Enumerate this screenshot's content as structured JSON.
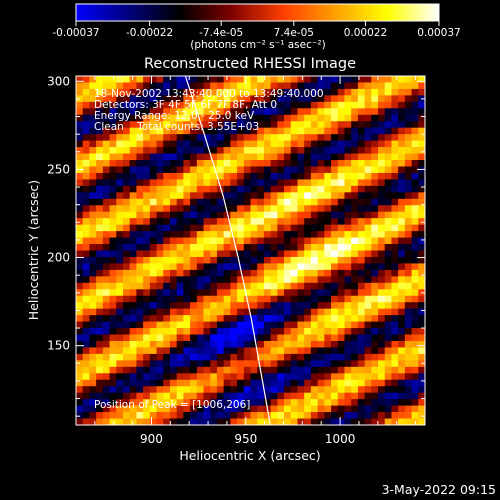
{
  "colorbar": {
    "tick_labels": [
      "-0.00037",
      "-0.00022",
      "-7.4e-05",
      "7.4e-05",
      "0.00022",
      "0.00037"
    ],
    "tick_values": [
      -0.00037,
      -0.00022,
      -7.4e-05,
      7.4e-05,
      0.00022,
      0.00037
    ],
    "range": [
      -0.00037,
      0.00037
    ],
    "unit_label": "(photons cm⁻² s⁻¹ asec⁻²)"
  },
  "chart_data": {
    "type": "heatmap",
    "title": "Reconstructed RHESSI Image",
    "xlabel": "Heliocentric X (arcsec)",
    "ylabel": "Heliocentric Y (arcsec)",
    "xlim": [
      860,
      1045
    ],
    "ylim": [
      105,
      303
    ],
    "x_ticks": [
      900,
      950,
      1000
    ],
    "y_ticks": [
      150,
      200,
      250,
      300
    ],
    "grid": false,
    "annotations": [
      "18-Nov-2002 13:43:40.000 to 13:49:40.000",
      "Detectors: 3F 4F 5F 6F 7F 8F, Att 0",
      "Energy Range: 12.0 - 25.0 keV",
      "Clean    Total counts: 3.55E+03"
    ],
    "peak_label": "Position of Peak = [1006,206]",
    "peak_position": [
      1006,
      206
    ],
    "limb_curve": {
      "x": [
        918,
        928,
        938,
        946,
        953,
        958,
        963
      ],
      "y": [
        303,
        270,
        235,
        200,
        165,
        135,
        105
      ]
    },
    "colormap": [
      "#0000ff",
      "#00007f",
      "#000000",
      "#7f0000",
      "#ff3f00",
      "#ff9f00",
      "#ffff00",
      "#ffffff"
    ]
  },
  "footer": {
    "date_label": "3-May-2022 09:15"
  }
}
